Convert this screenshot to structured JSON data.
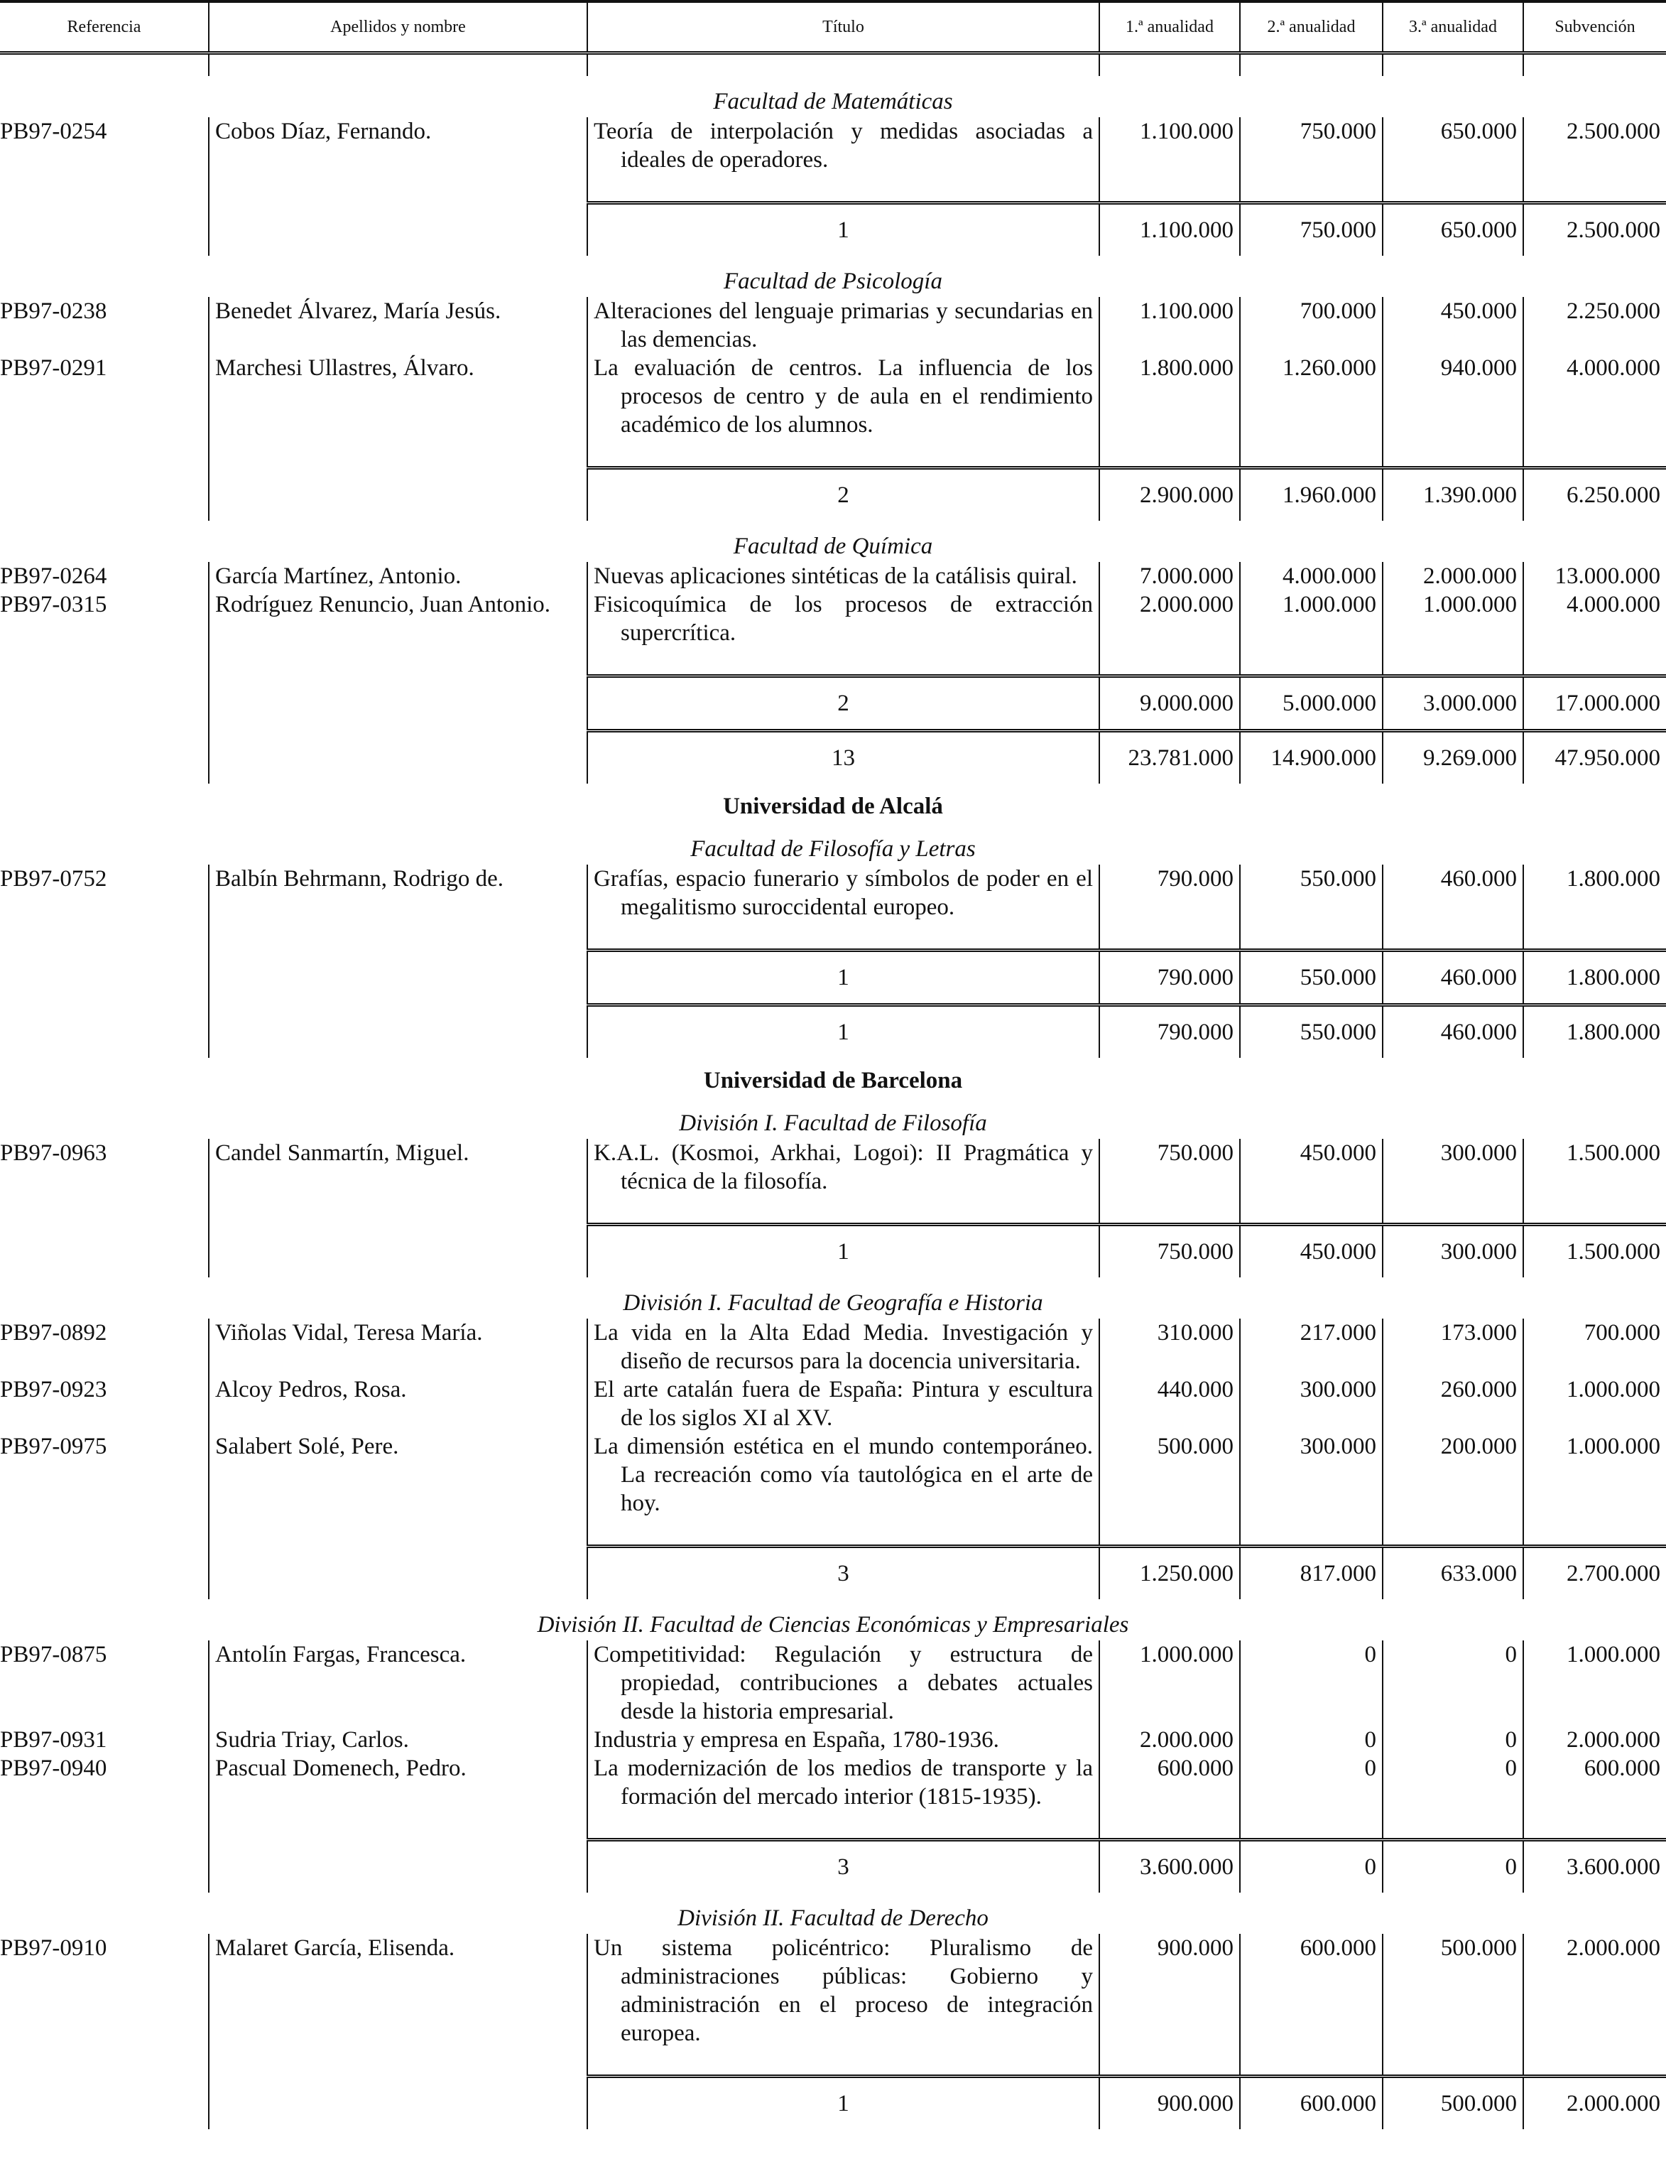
{
  "header": [
    "Referencia",
    "Apellidos y nombre",
    "Título",
    "1.ª anualidad",
    "2.ª anualidad",
    "3.ª anualidad",
    "Subvención"
  ],
  "blocks": [
    {
      "section": "Facultad de Matemáticas",
      "entries": [
        {
          "ref": "PB97-0254",
          "name": "Cobos Díaz, Fernando.",
          "title": "Teoría de interpolación y medidas asociadas a ideales de operadores.",
          "a1": "1.100.000",
          "a2": "750.000",
          "a3": "650.000",
          "total": "2.500.000"
        }
      ],
      "totals": [
        [
          "1",
          "1.100.000",
          "750.000",
          "650.000",
          "2.500.000"
        ]
      ]
    },
    {
      "section": "Facultad de Psicología",
      "entries": [
        {
          "ref": "PB97-0238",
          "name": "Benedet Álvarez, María Jesús.",
          "title": "Alteraciones del lenguaje primarias y secundarias en las demencias.",
          "a1": "1.100.000",
          "a2": "700.000",
          "a3": "450.000",
          "total": "2.250.000"
        },
        {
          "ref": "PB97-0291",
          "name": "Marchesi Ullastres, Álvaro.",
          "title": "La evaluación de centros. La influencia de los procesos de centro y de aula en el rendimiento académico de los alumnos.",
          "a1": "1.800.000",
          "a2": "1.260.000",
          "a3": "940.000",
          "total": "4.000.000"
        }
      ],
      "totals": [
        [
          "2",
          "2.900.000",
          "1.960.000",
          "1.390.000",
          "6.250.000"
        ]
      ]
    },
    {
      "section": "Facultad de Química",
      "entries": [
        {
          "ref": "PB97-0264",
          "name": "García Martínez, Antonio.",
          "title": "Nuevas aplicaciones sintéticas de la catálisis quiral.",
          "a1": "7.000.000",
          "a2": "4.000.000",
          "a3": "2.000.000",
          "total": "13.000.000"
        },
        {
          "ref": "PB97-0315",
          "name": "Rodríguez Renuncio, Juan Antonio.",
          "title": "Fisicoquímica de los procesos de extracción supercrítica.",
          "a1": "2.000.000",
          "a2": "1.000.000",
          "a3": "1.000.000",
          "total": "4.000.000"
        }
      ],
      "totals": [
        [
          "2",
          "9.000.000",
          "5.000.000",
          "3.000.000",
          "17.000.000"
        ],
        [
          "13",
          "23.781.000",
          "14.900.000",
          "9.269.000",
          "47.950.000"
        ]
      ]
    },
    {
      "university": "Universidad de Alcalá",
      "section": "Facultad de Filosofía y Letras",
      "entries": [
        {
          "ref": "PB97-0752",
          "name": "Balbín Behrmann, Rodrigo de.",
          "title": "Grafías, espacio funerario y símbolos de poder en el megalitismo suroccidental europeo.",
          "a1": "790.000",
          "a2": "550.000",
          "a3": "460.000",
          "total": "1.800.000"
        }
      ],
      "totals": [
        [
          "1",
          "790.000",
          "550.000",
          "460.000",
          "1.800.000"
        ],
        [
          "1",
          "790.000",
          "550.000",
          "460.000",
          "1.800.000"
        ]
      ]
    },
    {
      "university": "Universidad de Barcelona",
      "section": "División I. Facultad de Filosofía",
      "entries": [
        {
          "ref": "PB97-0963",
          "name": "Candel Sanmartín, Miguel.",
          "title": "K.A.L. (Kosmoi, Arkhai, Logoi): II Pragmática y técnica de la filosofía.",
          "a1": "750.000",
          "a2": "450.000",
          "a3": "300.000",
          "total": "1.500.000"
        }
      ],
      "totals": [
        [
          "1",
          "750.000",
          "450.000",
          "300.000",
          "1.500.000"
        ]
      ]
    },
    {
      "section": "División I. Facultad de Geografía e Historia",
      "entries": [
        {
          "ref": "PB97-0892",
          "name": "Viñolas Vidal, Teresa María.",
          "title": "La vida en la Alta Edad Media. Investigación y diseño de recursos para la docencia universitaria.",
          "a1": "310.000",
          "a2": "217.000",
          "a3": "173.000",
          "total": "700.000"
        },
        {
          "ref": "PB97-0923",
          "name": "Alcoy Pedros, Rosa.",
          "title": "El arte catalán fuera de España: Pintura y escultura de los siglos XI al XV.",
          "a1": "440.000",
          "a2": "300.000",
          "a3": "260.000",
          "total": "1.000.000"
        },
        {
          "ref": "PB97-0975",
          "name": "Salabert Solé, Pere.",
          "title": "La dimensión estética en el mundo contemporáneo. La recreación como vía tautológica en el arte de hoy.",
          "a1": "500.000",
          "a2": "300.000",
          "a3": "200.000",
          "total": "1.000.000"
        }
      ],
      "totals": [
        [
          "3",
          "1.250.000",
          "817.000",
          "633.000",
          "2.700.000"
        ]
      ]
    },
    {
      "section": "División II. Facultad de Ciencias Económicas y Empresariales",
      "entries": [
        {
          "ref": "PB97-0875",
          "name": "Antolín Fargas, Francesca.",
          "title": "Competitividad: Regulación y estructura de propiedad, contribuciones a debates actuales desde la historia empresarial.",
          "a1": "1.000.000",
          "a2": "0",
          "a3": "0",
          "total": "1.000.000"
        },
        {
          "ref": "PB97-0931",
          "name": "Sudria Triay, Carlos.",
          "title": "Industria y empresa en España, 1780-1936.",
          "a1": "2.000.000",
          "a2": "0",
          "a3": "0",
          "total": "2.000.000"
        },
        {
          "ref": "PB97-0940",
          "name": "Pascual Domenech, Pedro.",
          "title": "La modernización de los medios de transporte y la formación del mercado interior (1815-1935).",
          "a1": "600.000",
          "a2": "0",
          "a3": "0",
          "total": "600.000"
        }
      ],
      "totals": [
        [
          "3",
          "3.600.000",
          "0",
          "0",
          "3.600.000"
        ]
      ]
    },
    {
      "section": "División II. Facultad de Derecho",
      "entries": [
        {
          "ref": "PB97-0910",
          "name": "Malaret García, Elisenda.",
          "title": "Un sistema policéntrico: Pluralismo de administraciones públicas: Gobierno y administración en el proceso de integración europea.",
          "a1": "900.000",
          "a2": "600.000",
          "a3": "500.000",
          "total": "2.000.000"
        }
      ],
      "totals": [
        [
          "1",
          "900.000",
          "600.000",
          "500.000",
          "2.000.000"
        ]
      ]
    }
  ]
}
